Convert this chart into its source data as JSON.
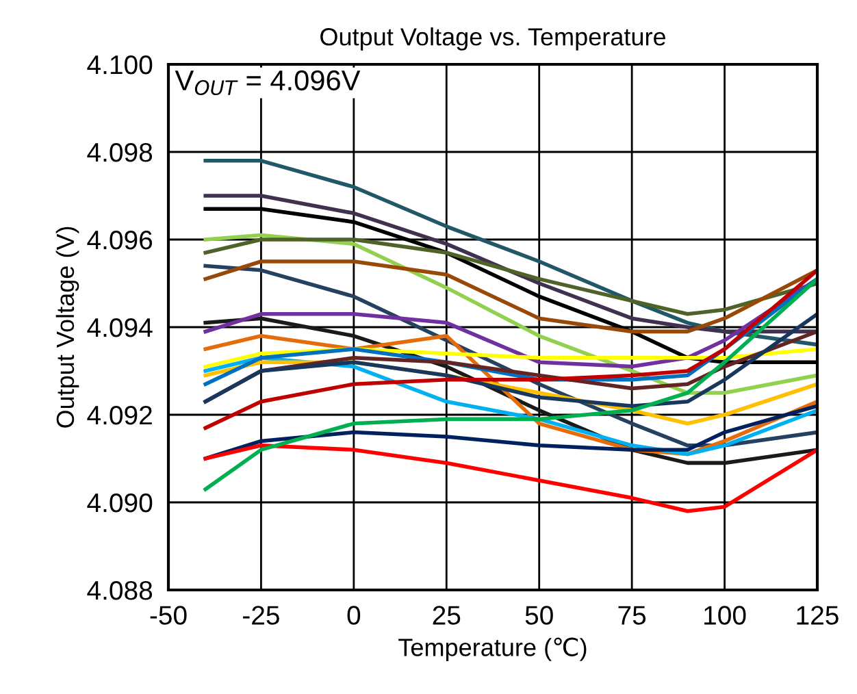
{
  "chart_data": {
    "type": "line",
    "title": "Output Voltage vs. Temperature",
    "xlabel": "Temperature (℃)",
    "ylabel": "Output Voltage (V)",
    "annotations": [
      "V$_{OUT}$ = 4.096V"
    ],
    "x": [
      -40,
      -25,
      0,
      25,
      50,
      75,
      90,
      100,
      125
    ],
    "xlim": [
      -50,
      125
    ],
    "xticks": [
      -50,
      -25,
      0,
      25,
      50,
      75,
      100,
      125
    ],
    "ylim": [
      4.088,
      4.1
    ],
    "yticks": [
      {
        "value": 4.088,
        "label": "4.088"
      },
      {
        "value": 4.09,
        "label": "4.090"
      },
      {
        "value": 4.092,
        "label": "4.092"
      },
      {
        "value": 4.094,
        "label": "4.094"
      },
      {
        "value": 4.096,
        "label": "4.096"
      },
      {
        "value": 4.098,
        "label": "4.098"
      },
      {
        "value": 4.1,
        "label": "4.100"
      }
    ],
    "grid": true,
    "line_style": "solid",
    "series": [
      {
        "color": "#215868",
        "values": [
          4.0978,
          4.0978,
          4.0972,
          4.0963,
          4.0955,
          4.0946,
          4.0941,
          4.0939,
          4.0936
        ]
      },
      {
        "color": "#403151",
        "values": [
          4.097,
          4.097,
          4.0966,
          4.0959,
          4.095,
          4.0942,
          4.094,
          4.0939,
          4.0939
        ]
      },
      {
        "color": "#000000",
        "values": [
          4.0967,
          4.0967,
          4.0964,
          4.0957,
          4.0947,
          4.0939,
          4.0933,
          4.0932,
          4.0932
        ]
      },
      {
        "color": "#92d050",
        "values": [
          4.096,
          4.0961,
          4.0959,
          4.0949,
          4.0938,
          4.093,
          4.0925,
          4.0925,
          4.0929
        ]
      },
      {
        "color": "#4f6228",
        "values": [
          4.0957,
          4.096,
          4.096,
          4.0957,
          4.0951,
          4.0946,
          4.0943,
          4.0944,
          4.095
        ]
      },
      {
        "color": "#254061",
        "values": [
          4.0954,
          4.0953,
          4.0947,
          4.0937,
          4.0927,
          4.0918,
          4.0913,
          4.0913,
          4.0916
        ]
      },
      {
        "color": "#984807",
        "values": [
          4.0951,
          4.0955,
          4.0955,
          4.0952,
          4.0942,
          4.0939,
          4.0939,
          4.0942,
          4.0953
        ]
      },
      {
        "color": "#1a1a1a",
        "values": [
          4.0941,
          4.0942,
          4.0938,
          4.0931,
          4.0921,
          4.0912,
          4.0909,
          4.0909,
          4.0912
        ]
      },
      {
        "color": "#7030a0",
        "values": [
          4.0939,
          4.0943,
          4.0943,
          4.0941,
          4.0932,
          4.0931,
          4.0933,
          4.0937,
          4.0951
        ]
      },
      {
        "color": "#e46c0a",
        "values": [
          4.0935,
          4.0938,
          4.0935,
          4.0938,
          4.0918,
          4.0912,
          4.0911,
          4.0914,
          4.0923
        ]
      },
      {
        "color": "#ffff00",
        "values": [
          4.0931,
          4.0934,
          4.0935,
          4.0934,
          4.0933,
          4.0933,
          4.0933,
          4.0933,
          4.0935
        ]
      },
      {
        "color": "#00b0f0",
        "values": [
          4.093,
          4.0933,
          4.0931,
          4.0923,
          4.0919,
          4.0913,
          4.0911,
          4.0913,
          4.0921
        ]
      },
      {
        "color": "#ffc000",
        "values": [
          4.0929,
          4.0932,
          4.0932,
          4.0929,
          4.0925,
          4.0921,
          4.0918,
          4.092,
          4.0927
        ]
      },
      {
        "color": "#0070c0",
        "values": [
          4.0927,
          4.0933,
          4.0935,
          4.0932,
          4.0928,
          4.0928,
          4.0929,
          4.0935,
          4.0951
        ]
      },
      {
        "color": "#632523",
        "values": [
          4.0923,
          4.093,
          4.0933,
          4.0932,
          4.0929,
          4.0926,
          4.0927,
          4.0931,
          4.0939
        ]
      },
      {
        "color": "#17375e",
        "values": [
          4.0923,
          4.093,
          4.0932,
          4.0929,
          4.0924,
          4.0922,
          4.0923,
          4.0928,
          4.0943
        ]
      },
      {
        "color": "#c00000",
        "values": [
          4.0917,
          4.0923,
          4.0927,
          4.0928,
          4.0928,
          4.0929,
          4.093,
          4.0935,
          4.0953
        ]
      },
      {
        "color": "#002060",
        "values": [
          4.091,
          4.0914,
          4.0916,
          4.0915,
          4.0913,
          4.0912,
          4.0912,
          4.0916,
          4.0922
        ]
      },
      {
        "color": "#ff0000",
        "values": [
          4.091,
          4.0913,
          4.0912,
          4.0909,
          4.0905,
          4.0901,
          4.0898,
          4.0899,
          4.0912
        ]
      },
      {
        "color": "#00b050",
        "values": [
          4.0903,
          4.0912,
          4.0918,
          4.0919,
          4.0919,
          4.0921,
          4.0925,
          4.0932,
          4.0951
        ]
      }
    ]
  }
}
